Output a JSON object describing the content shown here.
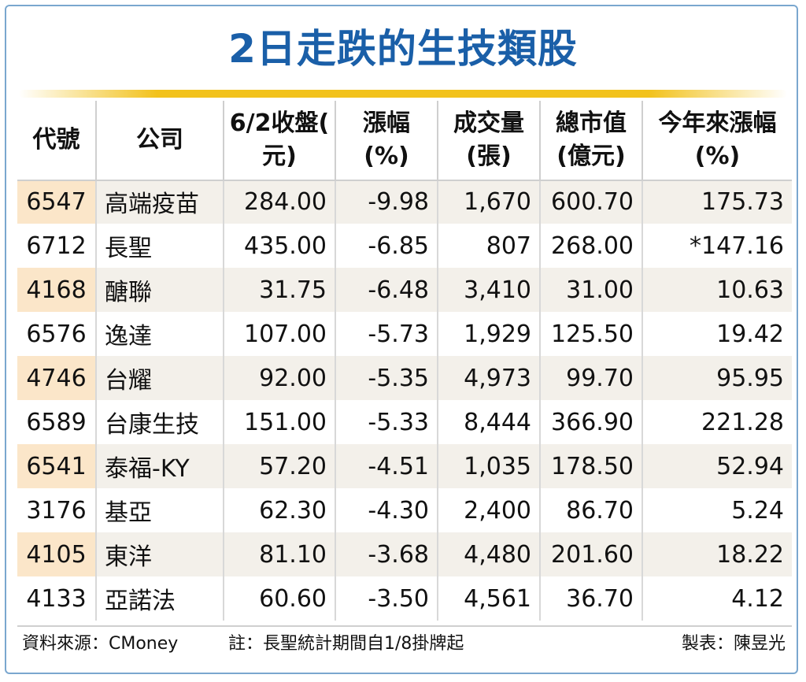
{
  "title": "2日走跌的生技類股",
  "chart_data": {
    "type": "table",
    "title": "2日走跌的生技類股",
    "columns": [
      {
        "line1": "代號",
        "line2": ""
      },
      {
        "line1": "公司",
        "line2": ""
      },
      {
        "line1": "6/2收盤(",
        "line2": "元)"
      },
      {
        "line1": "漲幅",
        "line2": "(%)"
      },
      {
        "line1": "成交量",
        "line2": "(張)"
      },
      {
        "line1": "總市值",
        "line2": "(億元)"
      },
      {
        "line1": "今年來漲幅",
        "line2": "(%)"
      }
    ],
    "rows": [
      [
        "6547",
        "高端疫苗",
        "284.00",
        "-9.98",
        "1,670",
        "600.70",
        "175.73"
      ],
      [
        "6712",
        "長聖",
        "435.00",
        "-6.85",
        "807",
        "268.00",
        "*147.16"
      ],
      [
        "4168",
        "醣聯",
        "31.75",
        "-6.48",
        "3,410",
        "31.00",
        "10.63"
      ],
      [
        "6576",
        "逸達",
        "107.00",
        "-5.73",
        "1,929",
        "125.50",
        "19.42"
      ],
      [
        "4746",
        "台耀",
        "92.00",
        "-5.35",
        "4,973",
        "99.70",
        "95.95"
      ],
      [
        "6589",
        "台康生技",
        "151.00",
        "-5.33",
        "8,444",
        "366.90",
        "221.28"
      ],
      [
        "6541",
        "泰福-KY",
        "57.20",
        "-4.51",
        "1,035",
        "178.50",
        "52.94"
      ],
      [
        "3176",
        "基亞",
        "62.30",
        "-4.30",
        "2,400",
        "86.70",
        "5.24"
      ],
      [
        "4105",
        "東洋",
        "81.10",
        "-3.68",
        "4,480",
        "201.60",
        "18.22"
      ],
      [
        "4133",
        "亞諾法",
        "60.60",
        "-3.50",
        "4,561",
        "36.70",
        "4.12"
      ]
    ]
  },
  "footer": {
    "source": "資料來源：CMoney",
    "note": "註：長聖統計期間自1/8掛牌起",
    "maker": "製表：陳昱光"
  },
  "colors": {
    "title": "#1a5fa8",
    "frame": "#7aa7cf",
    "accent_line": "#f2c21c",
    "row_shade": "#f3f0ea",
    "code_shade": "#fbe6c9"
  }
}
